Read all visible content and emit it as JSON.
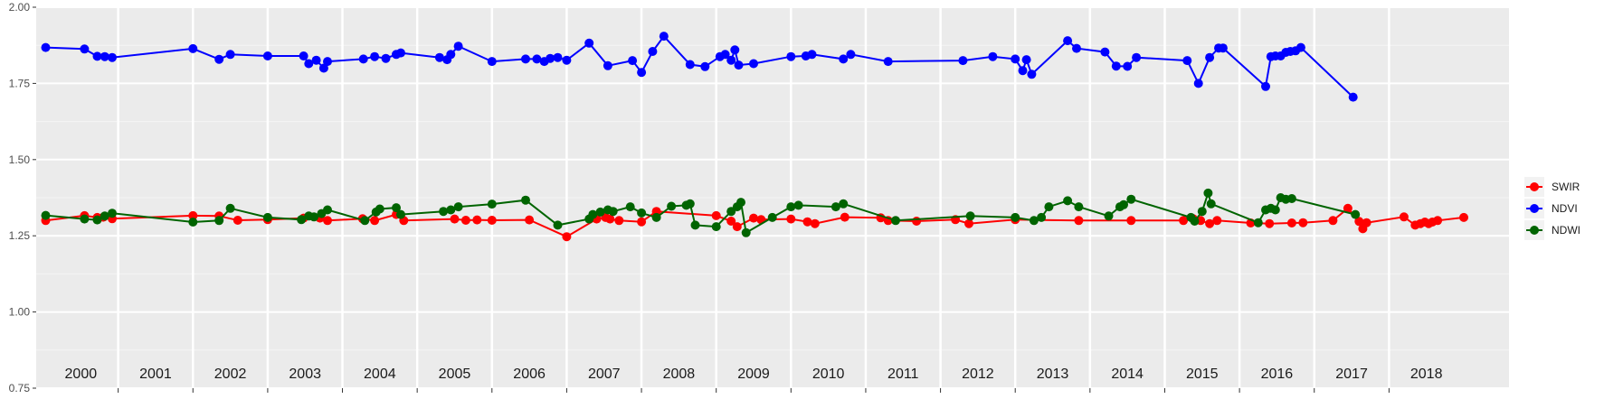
{
  "chart_data": {
    "type": "line",
    "title": "",
    "xlabel": "",
    "ylabel": "",
    "xlim": [
      2000.0,
      2019.0
    ],
    "ylim": [
      0.75,
      2.0
    ],
    "grid": true,
    "legend_position": "right",
    "y_ticks": [
      0.75,
      1.0,
      1.25,
      1.5,
      1.75,
      2.0
    ],
    "y_tick_labels": [
      "0.75",
      "1.00",
      "1.25",
      "1.50",
      "1.75",
      "2.00"
    ],
    "year_labels": [
      "2000",
      "2001",
      "2002",
      "2003",
      "2004",
      "2005",
      "2006",
      "2007",
      "2008",
      "2009",
      "2010",
      "2011",
      "2012",
      "2013",
      "2014",
      "2015",
      "2016",
      "2017",
      "2018"
    ],
    "series": [
      {
        "name": "SWIR",
        "color": "#ff0000",
        "points": [
          [
            2000.03,
            1.3
          ],
          [
            2000.55,
            1.316
          ],
          [
            2000.72,
            1.31
          ],
          [
            2000.8,
            1.311
          ],
          [
            2000.92,
            1.306
          ],
          [
            2002.0,
            1.316
          ],
          [
            2002.35,
            1.315
          ],
          [
            2002.6,
            1.301
          ],
          [
            2003.0,
            1.303
          ],
          [
            2003.48,
            1.308
          ],
          [
            2003.7,
            1.308
          ],
          [
            2003.8,
            1.3
          ],
          [
            2004.27,
            1.306
          ],
          [
            2004.43,
            1.3
          ],
          [
            2004.72,
            1.32
          ],
          [
            2004.82,
            1.3
          ],
          [
            2005.5,
            1.305
          ],
          [
            2005.65,
            1.301
          ],
          [
            2005.8,
            1.302
          ],
          [
            2006.0,
            1.301
          ],
          [
            2006.5,
            1.302
          ],
          [
            2007.0,
            1.247
          ],
          [
            2007.4,
            1.305
          ],
          [
            2007.52,
            1.31
          ],
          [
            2007.58,
            1.305
          ],
          [
            2007.7,
            1.3
          ],
          [
            2008.0,
            1.296
          ],
          [
            2008.2,
            1.33
          ],
          [
            2009.0,
            1.316
          ],
          [
            2009.2,
            1.298
          ],
          [
            2009.28,
            1.28
          ],
          [
            2009.5,
            1.308
          ],
          [
            2009.6,
            1.303
          ],
          [
            2010.0,
            1.305
          ],
          [
            2010.22,
            1.296
          ],
          [
            2010.32,
            1.29
          ],
          [
            2010.72,
            1.311
          ],
          [
            2011.2,
            1.309
          ],
          [
            2011.3,
            1.3
          ],
          [
            2011.68,
            1.298
          ],
          [
            2012.2,
            1.303
          ],
          [
            2012.38,
            1.29
          ],
          [
            2013.0,
            1.303
          ],
          [
            2013.85,
            1.3
          ],
          [
            2014.55,
            1.3
          ],
          [
            2015.25,
            1.3
          ],
          [
            2015.38,
            1.306
          ],
          [
            2015.48,
            1.3
          ],
          [
            2015.6,
            1.29
          ],
          [
            2015.7,
            1.3
          ],
          [
            2016.15,
            1.292
          ],
          [
            2016.4,
            1.29
          ],
          [
            2016.7,
            1.292
          ],
          [
            2016.85,
            1.293
          ],
          [
            2017.25,
            1.3
          ],
          [
            2017.45,
            1.34
          ],
          [
            2017.6,
            1.297
          ],
          [
            2017.65,
            1.273
          ],
          [
            2017.7,
            1.293
          ],
          [
            2018.2,
            1.312
          ],
          [
            2018.35,
            1.285
          ],
          [
            2018.42,
            1.29
          ],
          [
            2018.48,
            1.295
          ],
          [
            2018.53,
            1.29
          ],
          [
            2018.58,
            1.295
          ],
          [
            2018.65,
            1.3
          ],
          [
            2019.0,
            1.31
          ]
        ]
      },
      {
        "name": "NDVI",
        "color": "#0000ff",
        "points": [
          [
            2000.03,
            1.868
          ],
          [
            2000.55,
            1.863
          ],
          [
            2000.72,
            1.839
          ],
          [
            2000.82,
            1.838
          ],
          [
            2000.92,
            1.835
          ],
          [
            2002.0,
            1.864
          ],
          [
            2002.35,
            1.829
          ],
          [
            2002.5,
            1.845
          ],
          [
            2003.0,
            1.84
          ],
          [
            2003.48,
            1.84
          ],
          [
            2003.55,
            1.815
          ],
          [
            2003.65,
            1.826
          ],
          [
            2003.75,
            1.8
          ],
          [
            2003.8,
            1.822
          ],
          [
            2004.28,
            1.83
          ],
          [
            2004.43,
            1.838
          ],
          [
            2004.58,
            1.832
          ],
          [
            2004.72,
            1.845
          ],
          [
            2004.78,
            1.85
          ],
          [
            2005.3,
            1.835
          ],
          [
            2005.4,
            1.828
          ],
          [
            2005.45,
            1.845
          ],
          [
            2005.55,
            1.872
          ],
          [
            2006.0,
            1.822
          ],
          [
            2006.45,
            1.83
          ],
          [
            2006.6,
            1.83
          ],
          [
            2006.7,
            1.822
          ],
          [
            2006.78,
            1.832
          ],
          [
            2006.88,
            1.835
          ],
          [
            2007.0,
            1.826
          ],
          [
            2007.3,
            1.882
          ],
          [
            2007.55,
            1.808
          ],
          [
            2007.88,
            1.825
          ],
          [
            2008.0,
            1.786
          ],
          [
            2008.15,
            1.855
          ],
          [
            2008.3,
            1.905
          ],
          [
            2008.65,
            1.812
          ],
          [
            2008.85,
            1.805
          ],
          [
            2009.05,
            1.838
          ],
          [
            2009.12,
            1.845
          ],
          [
            2009.2,
            1.826
          ],
          [
            2009.25,
            1.86
          ],
          [
            2009.3,
            1.81
          ],
          [
            2009.5,
            1.815
          ],
          [
            2010.0,
            1.838
          ],
          [
            2010.2,
            1.84
          ],
          [
            2010.28,
            1.845
          ],
          [
            2010.7,
            1.83
          ],
          [
            2010.8,
            1.845
          ],
          [
            2011.3,
            1.822
          ],
          [
            2012.3,
            1.825
          ],
          [
            2012.7,
            1.838
          ],
          [
            2013.0,
            1.83
          ],
          [
            2013.1,
            1.792
          ],
          [
            2013.15,
            1.828
          ],
          [
            2013.22,
            1.78
          ],
          [
            2013.7,
            1.89
          ],
          [
            2013.82,
            1.865
          ],
          [
            2014.2,
            1.853
          ],
          [
            2014.35,
            1.807
          ],
          [
            2014.5,
            1.806
          ],
          [
            2014.62,
            1.835
          ],
          [
            2015.3,
            1.825
          ],
          [
            2015.45,
            1.75
          ],
          [
            2015.6,
            1.835
          ],
          [
            2015.72,
            1.866
          ],
          [
            2015.78,
            1.866
          ],
          [
            2016.35,
            1.74
          ],
          [
            2016.42,
            1.838
          ],
          [
            2016.48,
            1.84
          ],
          [
            2016.55,
            1.84
          ],
          [
            2016.62,
            1.852
          ],
          [
            2016.68,
            1.855
          ],
          [
            2016.75,
            1.857
          ],
          [
            2016.82,
            1.868
          ],
          [
            2017.52,
            1.705
          ]
        ]
      },
      {
        "name": "NDWI",
        "color": "#006400",
        "points": [
          [
            2000.03,
            1.317
          ],
          [
            2000.55,
            1.305
          ],
          [
            2000.72,
            1.302
          ],
          [
            2000.82,
            1.315
          ],
          [
            2000.92,
            1.324
          ],
          [
            2002.0,
            1.295
          ],
          [
            2002.35,
            1.3
          ],
          [
            2002.5,
            1.34
          ],
          [
            2003.0,
            1.31
          ],
          [
            2003.45,
            1.303
          ],
          [
            2003.55,
            1.315
          ],
          [
            2003.62,
            1.312
          ],
          [
            2003.72,
            1.323
          ],
          [
            2003.8,
            1.335
          ],
          [
            2004.3,
            1.3
          ],
          [
            2004.45,
            1.328
          ],
          [
            2004.5,
            1.338
          ],
          [
            2004.72,
            1.342
          ],
          [
            2004.78,
            1.32
          ],
          [
            2005.35,
            1.33
          ],
          [
            2005.45,
            1.335
          ],
          [
            2005.55,
            1.345
          ],
          [
            2006.0,
            1.354
          ],
          [
            2006.45,
            1.367
          ],
          [
            2006.88,
            1.285
          ],
          [
            2007.3,
            1.305
          ],
          [
            2007.35,
            1.32
          ],
          [
            2007.45,
            1.328
          ],
          [
            2007.55,
            1.335
          ],
          [
            2007.62,
            1.33
          ],
          [
            2007.85,
            1.345
          ],
          [
            2008.0,
            1.325
          ],
          [
            2008.2,
            1.31
          ],
          [
            2008.4,
            1.347
          ],
          [
            2008.6,
            1.35
          ],
          [
            2008.65,
            1.355
          ],
          [
            2008.72,
            1.285
          ],
          [
            2009.0,
            1.28
          ],
          [
            2009.2,
            1.33
          ],
          [
            2009.28,
            1.345
          ],
          [
            2009.33,
            1.36
          ],
          [
            2009.4,
            1.26
          ],
          [
            2009.75,
            1.31
          ],
          [
            2010.0,
            1.345
          ],
          [
            2010.1,
            1.35
          ],
          [
            2010.6,
            1.345
          ],
          [
            2010.7,
            1.355
          ],
          [
            2011.4,
            1.3
          ],
          [
            2012.4,
            1.315
          ],
          [
            2013.0,
            1.31
          ],
          [
            2013.25,
            1.3
          ],
          [
            2013.35,
            1.31
          ],
          [
            2013.45,
            1.345
          ],
          [
            2013.7,
            1.365
          ],
          [
            2013.85,
            1.345
          ],
          [
            2014.25,
            1.315
          ],
          [
            2014.4,
            1.345
          ],
          [
            2014.45,
            1.352
          ],
          [
            2014.55,
            1.37
          ],
          [
            2015.35,
            1.31
          ],
          [
            2015.4,
            1.298
          ],
          [
            2015.5,
            1.33
          ],
          [
            2015.58,
            1.39
          ],
          [
            2015.62,
            1.355
          ],
          [
            2016.25,
            1.293
          ],
          [
            2016.35,
            1.335
          ],
          [
            2016.42,
            1.34
          ],
          [
            2016.48,
            1.335
          ],
          [
            2016.55,
            1.375
          ],
          [
            2016.62,
            1.37
          ],
          [
            2016.7,
            1.372
          ],
          [
            2017.55,
            1.32
          ]
        ]
      }
    ]
  }
}
